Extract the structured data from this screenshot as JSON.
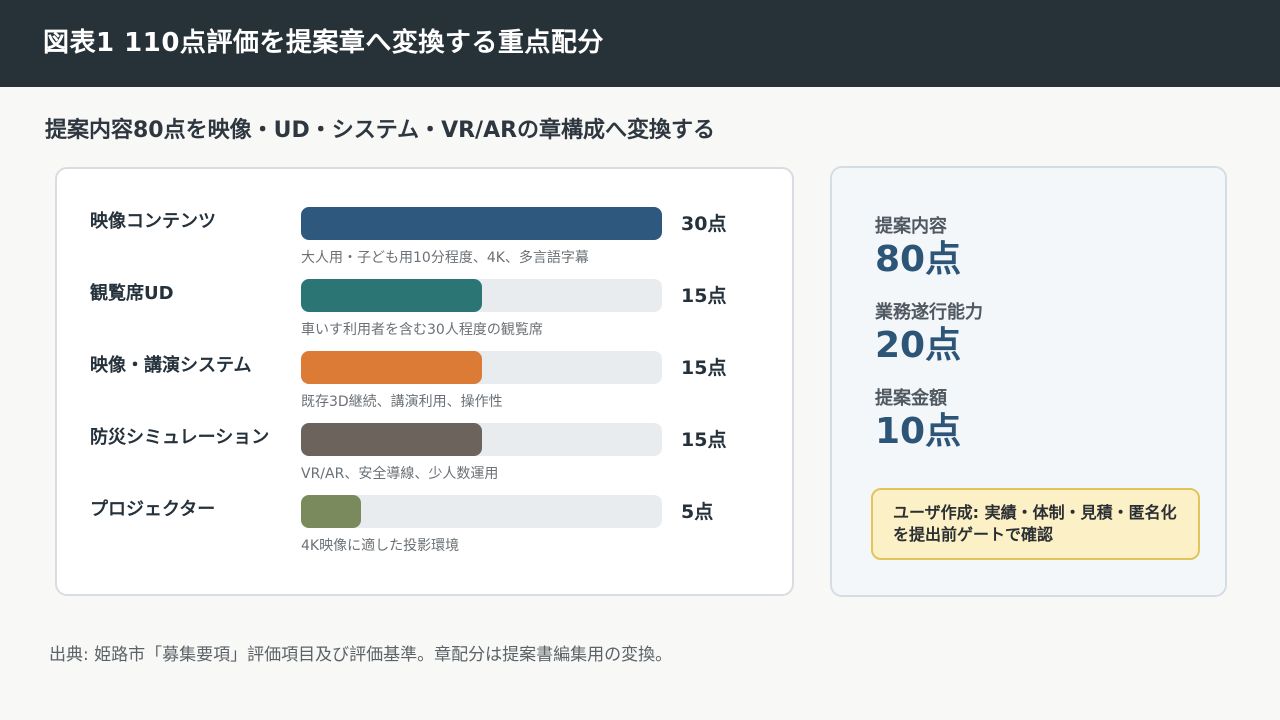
{
  "header": {
    "title": "図表1 110点評価を提案章へ変換する重点配分"
  },
  "subtitle": "提案内容80点を映像・UD・システム・VR/ARの章構成へ変換する",
  "chart_data": {
    "type": "bar",
    "orientation": "horizontal",
    "categories": [
      "映像コンテンツ",
      "観覧席UD",
      "映像・講演システム",
      "防災シミュレーション",
      "プロジェクター"
    ],
    "values": [
      30,
      15,
      15,
      15,
      5
    ],
    "value_labels": [
      "30点",
      "15点",
      "15点",
      "15点",
      "5点"
    ],
    "notes": [
      "大人用・子ども用10分程度、4K、多言語字幕",
      "車いす利用者を含む30人程度の観覧席",
      "既存3D継続、講演利用、操作性",
      "VR/AR、安全導線、少人数運用",
      "4K映像に適した投影環境"
    ],
    "colors": [
      "#2e587d",
      "#2c7575",
      "#dc7b36",
      "#6b635c",
      "#7a8a5c"
    ],
    "xlim": [
      0,
      30
    ]
  },
  "summary": {
    "stats": [
      {
        "label": "提案内容",
        "value": "80点"
      },
      {
        "label": "業務遂行能力",
        "value": "20点"
      },
      {
        "label": "提案金額",
        "value": "10点"
      }
    ],
    "note": "ユーザ作成: 実績・体制・見積・匿名化を提出前ゲートで確認"
  },
  "source": "出典: 姫路市「募集要項」評価項目及び評価基準。章配分は提案書編集用の変換。"
}
